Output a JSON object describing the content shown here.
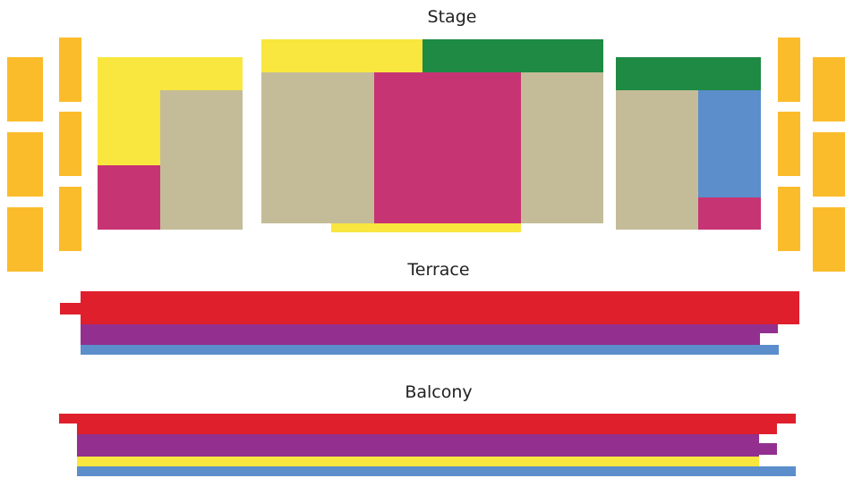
{
  "labels": {
    "stage": "Stage",
    "terrace": "Terrace",
    "balcony": "Balcony"
  },
  "colors": {
    "orange": "#FBBC2C",
    "yellow": "#F9E63F",
    "green": "#1E8A44",
    "beige": "#C4BC98",
    "magenta": "#C73474",
    "blue": "#5B8ECB",
    "red": "#DF1F2C",
    "purple": "#93308F"
  }
}
